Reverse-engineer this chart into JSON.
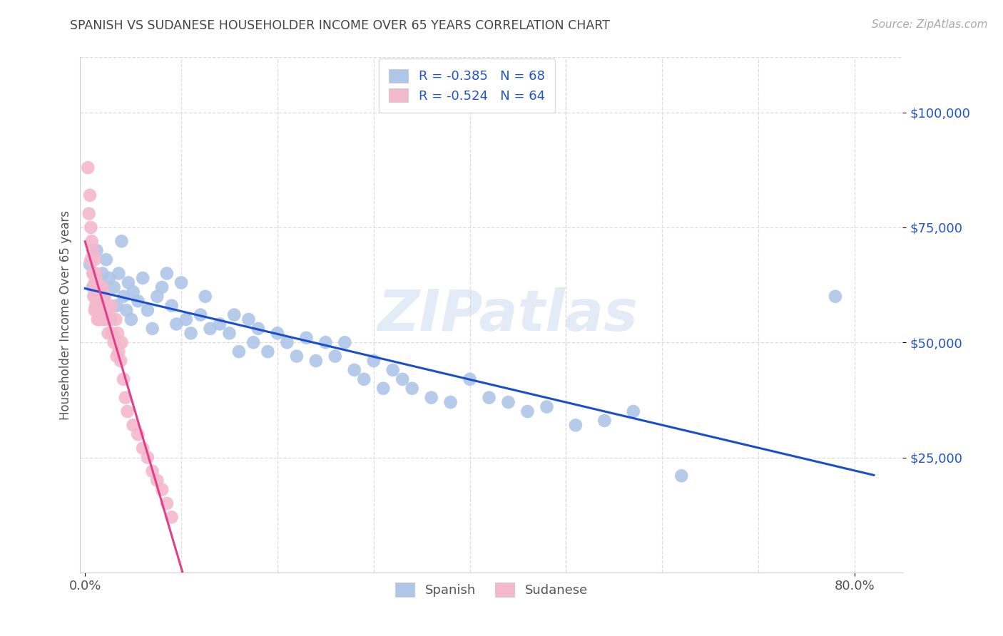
{
  "title": "SPANISH VS SUDANESE HOUSEHOLDER INCOME OVER 65 YEARS CORRELATION CHART",
  "source": "Source: ZipAtlas.com",
  "ylabel": "Householder Income Over 65 years",
  "ytick_labels": [
    "$25,000",
    "$50,000",
    "$75,000",
    "$100,000"
  ],
  "ytick_values": [
    25000,
    50000,
    75000,
    100000
  ],
  "ylim": [
    0,
    112000
  ],
  "xlim": [
    -0.005,
    0.85
  ],
  "watermark": "ZIPatlas",
  "legend_blue_r": "-0.385",
  "legend_blue_n": "68",
  "legend_pink_r": "-0.524",
  "legend_pink_n": "64",
  "blue_color": "#aec6e8",
  "pink_color": "#f4b8cc",
  "line_blue": "#1a4fcc",
  "line_pink": "#e0408a",
  "title_color": "#444444",
  "axis_label_color": "#555555",
  "ytick_color": "#2255cc",
  "xtick_color": "#555555",
  "legend_text_color": "#2255cc",
  "background_color": "#ffffff",
  "grid_color": "#dddddd",
  "spanish_x": [
    0.005,
    0.008,
    0.012,
    0.015,
    0.018,
    0.02,
    0.022,
    0.025,
    0.027,
    0.03,
    0.033,
    0.035,
    0.038,
    0.04,
    0.043,
    0.045,
    0.048,
    0.05,
    0.055,
    0.06,
    0.065,
    0.07,
    0.075,
    0.08,
    0.085,
    0.09,
    0.095,
    0.1,
    0.105,
    0.11,
    0.12,
    0.125,
    0.13,
    0.14,
    0.15,
    0.155,
    0.16,
    0.17,
    0.175,
    0.18,
    0.19,
    0.2,
    0.21,
    0.22,
    0.23,
    0.24,
    0.25,
    0.26,
    0.27,
    0.28,
    0.29,
    0.3,
    0.31,
    0.32,
    0.33,
    0.34,
    0.36,
    0.38,
    0.4,
    0.42,
    0.44,
    0.46,
    0.48,
    0.51,
    0.54,
    0.57,
    0.62,
    0.78
  ],
  "spanish_y": [
    67000,
    62000,
    70000,
    58000,
    65000,
    60000,
    68000,
    64000,
    55000,
    62000,
    58000,
    65000,
    72000,
    60000,
    57000,
    63000,
    55000,
    61000,
    59000,
    64000,
    57000,
    53000,
    60000,
    62000,
    65000,
    58000,
    54000,
    63000,
    55000,
    52000,
    56000,
    60000,
    53000,
    54000,
    52000,
    56000,
    48000,
    55000,
    50000,
    53000,
    48000,
    52000,
    50000,
    47000,
    51000,
    46000,
    50000,
    47000,
    50000,
    44000,
    42000,
    46000,
    40000,
    44000,
    42000,
    40000,
    38000,
    37000,
    42000,
    38000,
    37000,
    35000,
    36000,
    32000,
    33000,
    35000,
    21000,
    60000
  ],
  "sudanese_x": [
    0.003,
    0.004,
    0.005,
    0.006,
    0.006,
    0.007,
    0.008,
    0.008,
    0.009,
    0.009,
    0.01,
    0.01,
    0.01,
    0.01,
    0.01,
    0.011,
    0.011,
    0.012,
    0.012,
    0.013,
    0.013,
    0.013,
    0.014,
    0.014,
    0.015,
    0.015,
    0.015,
    0.015,
    0.016,
    0.016,
    0.017,
    0.017,
    0.018,
    0.018,
    0.019,
    0.02,
    0.02,
    0.021,
    0.022,
    0.023,
    0.024,
    0.025,
    0.026,
    0.027,
    0.028,
    0.03,
    0.032,
    0.033,
    0.034,
    0.035,
    0.037,
    0.038,
    0.04,
    0.042,
    0.044,
    0.05,
    0.055,
    0.06,
    0.065,
    0.07,
    0.075,
    0.08,
    0.085,
    0.09
  ],
  "sudanese_y": [
    88000,
    78000,
    82000,
    75000,
    68000,
    72000,
    65000,
    70000,
    60000,
    65000,
    63000,
    68000,
    57000,
    62000,
    60000,
    65000,
    58000,
    62000,
    57000,
    60000,
    55000,
    63000,
    58000,
    60000,
    55000,
    60000,
    62000,
    58000,
    62000,
    57000,
    60000,
    55000,
    58000,
    62000,
    57000,
    55000,
    60000,
    58000,
    57000,
    55000,
    52000,
    57000,
    55000,
    58000,
    52000,
    50000,
    55000,
    47000,
    52000,
    48000,
    46000,
    50000,
    42000,
    38000,
    35000,
    32000,
    30000,
    27000,
    25000,
    22000,
    20000,
    18000,
    15000,
    12000
  ]
}
